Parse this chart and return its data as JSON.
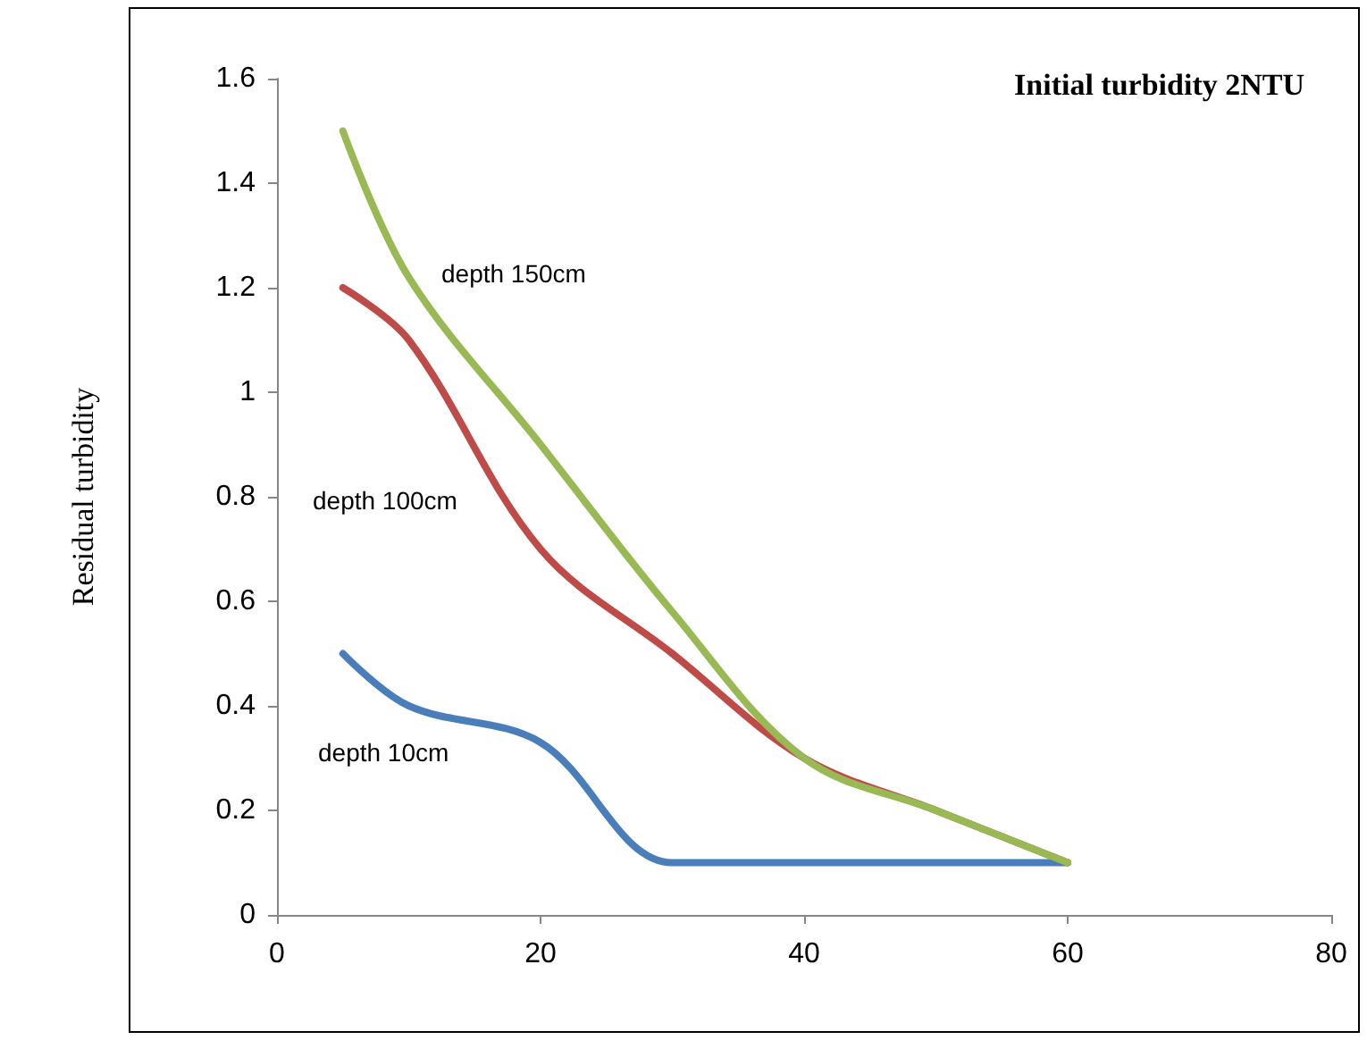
{
  "chart_data": {
    "type": "line",
    "title": "Initial turbidity 2NTU",
    "ylabel": "Residual turbidity",
    "x": [
      5,
      10,
      20,
      30,
      40,
      50,
      60
    ],
    "series": [
      {
        "name": "depth 10cm",
        "color": "#4a7ebb",
        "values": [
          0.5,
          0.4,
          0.33,
          0.1,
          0.1,
          0.1,
          0.1
        ]
      },
      {
        "name": "depth 100cm",
        "color": "#be4b48",
        "values": [
          1.2,
          1.1,
          0.7,
          0.5,
          0.3,
          0.2,
          0.1
        ]
      },
      {
        "name": "depth 150cm",
        "color": "#98b954",
        "values": [
          1.5,
          1.22,
          0.9,
          0.58,
          0.3,
          0.2,
          0.1
        ]
      }
    ],
    "xlim": [
      0,
      80
    ],
    "xticks": [
      0,
      20,
      40,
      60,
      80
    ],
    "ylim": [
      0,
      1.6
    ],
    "yticks": [
      0,
      0.2,
      0.4,
      0.6,
      0.8,
      1,
      1.2,
      1.4,
      1.6
    ],
    "grid": false,
    "legend": false,
    "marker": "none",
    "line_style": "solid"
  }
}
